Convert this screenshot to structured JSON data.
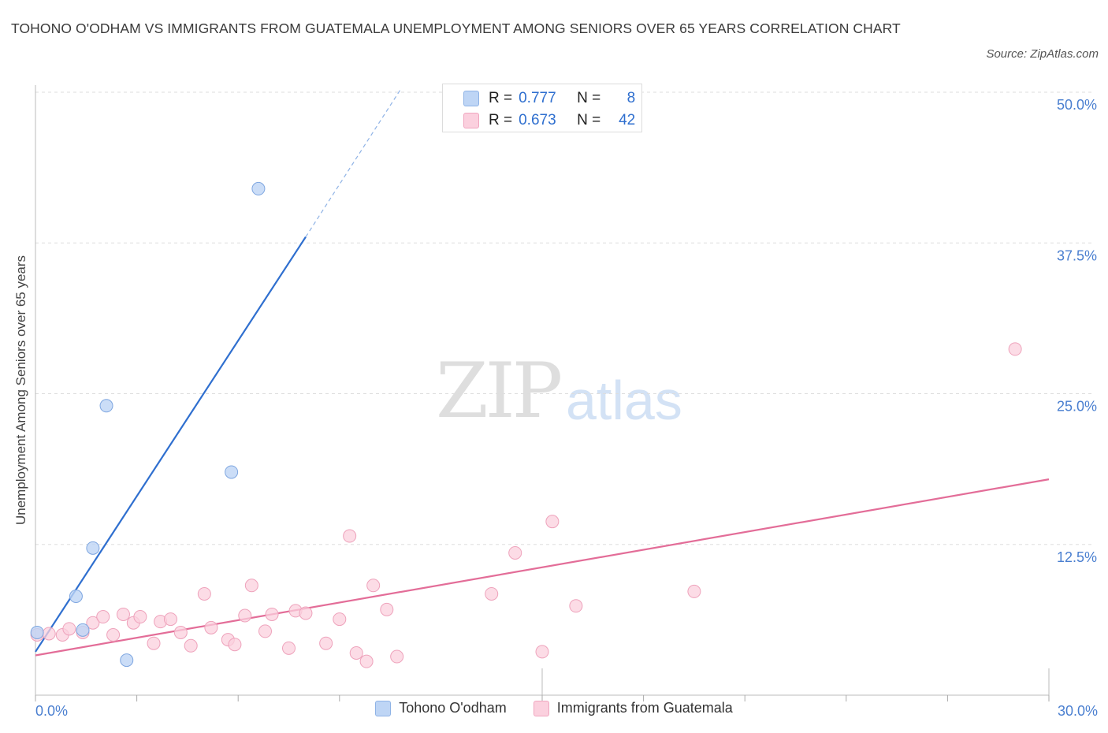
{
  "title": "TOHONO O'ODHAM VS IMMIGRANTS FROM GUATEMALA UNEMPLOYMENT AMONG SENIORS OVER 65 YEARS CORRELATION CHART",
  "source": "Source: ZipAtlas.com",
  "watermark": {
    "zip": "ZIP",
    "atlas": "atlas"
  },
  "legend": {
    "series1": "Tohono O'odham",
    "series2": "Immigrants from Guatemala"
  },
  "stats": {
    "r_label": "R =",
    "n_label": "N =",
    "s1": {
      "r": "0.777",
      "n": "8"
    },
    "s2": {
      "r": "0.673",
      "n": "42"
    }
  },
  "colors": {
    "blue_fill": "#bed5f5",
    "blue_stroke": "#7ea6e0",
    "blue_line": "#2f6fcf",
    "pink_fill": "#fbd0de",
    "pink_stroke": "#eea2bb",
    "pink_line": "#e36d98",
    "grid": "#dddddd",
    "tick_label": "#4a7fd0"
  },
  "chart_data": {
    "type": "scatter",
    "xlabel": "",
    "ylabel": "Unemployment Among Seniors over 65 years",
    "xlim": [
      0,
      30
    ],
    "ylim": [
      0,
      50
    ],
    "x_tick_labels": [
      {
        "value": 0,
        "label": "0.0%"
      },
      {
        "value": 30,
        "label": "30.0%"
      }
    ],
    "y_tick_labels": [
      {
        "value": 12.5,
        "label": "12.5%"
      },
      {
        "value": 25,
        "label": "25.0%"
      },
      {
        "value": 37.5,
        "label": "37.5%"
      },
      {
        "value": 50,
        "label": "50.0%"
      }
    ],
    "x_minor_ticks": [
      3,
      6,
      9,
      15,
      18,
      21,
      24,
      27
    ],
    "grid": true,
    "series": [
      {
        "name": "Tohono O'odham",
        "color": "#2f6fcf",
        "points": [
          [
            0.05,
            5.2
          ],
          [
            1.4,
            5.4
          ],
          [
            1.2,
            8.2
          ],
          [
            1.7,
            12.2
          ],
          [
            2.1,
            24.0
          ],
          [
            2.7,
            2.9
          ],
          [
            5.8,
            18.5
          ],
          [
            6.6,
            42.0
          ]
        ],
        "trend": {
          "x0": 0,
          "y0": 3.6,
          "x1": 8,
          "y1": 38.0,
          "dash_x1": 10.8,
          "dash_y1": 50.2
        }
      },
      {
        "name": "Immigrants from Guatemala",
        "color": "#e36d98",
        "points": [
          [
            0.05,
            5.0
          ],
          [
            0.4,
            5.1
          ],
          [
            0.8,
            5.0
          ],
          [
            1.0,
            5.5
          ],
          [
            1.4,
            5.2
          ],
          [
            1.7,
            6.0
          ],
          [
            2.0,
            6.5
          ],
          [
            2.3,
            5.0
          ],
          [
            2.6,
            6.7
          ],
          [
            2.9,
            6.0
          ],
          [
            3.1,
            6.5
          ],
          [
            3.5,
            4.3
          ],
          [
            3.7,
            6.1
          ],
          [
            4.0,
            6.3
          ],
          [
            4.3,
            5.2
          ],
          [
            4.6,
            4.1
          ],
          [
            5.0,
            8.4
          ],
          [
            5.2,
            5.6
          ],
          [
            5.7,
            4.6
          ],
          [
            5.9,
            4.2
          ],
          [
            6.2,
            6.6
          ],
          [
            6.4,
            9.1
          ],
          [
            6.8,
            5.3
          ],
          [
            7.0,
            6.7
          ],
          [
            7.5,
            3.9
          ],
          [
            7.7,
            7.0
          ],
          [
            8.0,
            6.8
          ],
          [
            8.6,
            4.3
          ],
          [
            9.0,
            6.3
          ],
          [
            9.3,
            13.2
          ],
          [
            9.5,
            3.5
          ],
          [
            9.8,
            2.8
          ],
          [
            10.0,
            9.1
          ],
          [
            10.4,
            7.1
          ],
          [
            10.7,
            3.2
          ],
          [
            13.5,
            8.4
          ],
          [
            14.2,
            11.8
          ],
          [
            15.0,
            3.6
          ],
          [
            15.3,
            14.4
          ],
          [
            16.0,
            7.4
          ],
          [
            19.5,
            8.6
          ],
          [
            29.0,
            28.7
          ]
        ],
        "trend": {
          "x0": 0,
          "y0": 3.3,
          "x1": 30,
          "y1": 17.9
        }
      }
    ]
  }
}
